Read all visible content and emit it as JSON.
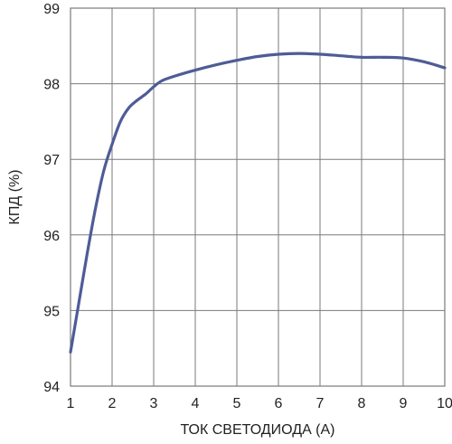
{
  "chart_data": {
    "type": "line",
    "title": "",
    "xlabel": "ТОК СВЕТОДИОДА (А)",
    "ylabel": "КПД (%)",
    "xlim": [
      1,
      10
    ],
    "ylim": [
      94,
      99
    ],
    "x_ticks": [
      "1",
      "2",
      "3",
      "4",
      "5",
      "6",
      "7",
      "8",
      "9",
      "10"
    ],
    "y_ticks": [
      "94",
      "95",
      "96",
      "97",
      "98",
      "99"
    ],
    "grid": true,
    "legend": "none",
    "line_color": "#4e5c96",
    "grid_color": "#7a7a7a",
    "series": [
      {
        "x": [
          1.0,
          1.2,
          1.4,
          1.6,
          1.8,
          2.0,
          2.2,
          2.4,
          2.6,
          2.8,
          3.0,
          3.2,
          3.5,
          4.0,
          4.5,
          5.0,
          5.5,
          6.0,
          6.5,
          7.0,
          7.5,
          8.0,
          8.5,
          9.0,
          9.5,
          10.0
        ],
        "y": [
          94.45,
          95.1,
          95.75,
          96.35,
          96.85,
          97.2,
          97.5,
          97.68,
          97.78,
          97.86,
          97.96,
          98.04,
          98.1,
          98.18,
          98.25,
          98.31,
          98.36,
          98.39,
          98.4,
          98.39,
          98.37,
          98.35,
          98.35,
          98.34,
          98.29,
          98.21
        ]
      }
    ]
  }
}
